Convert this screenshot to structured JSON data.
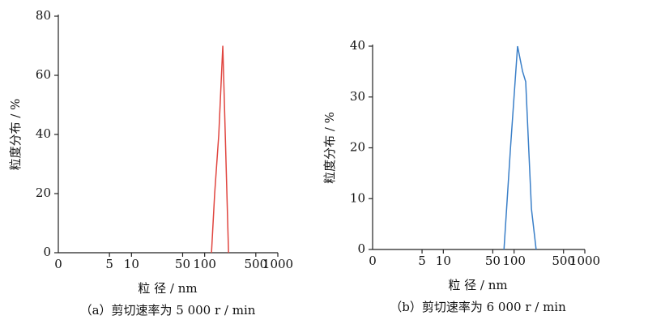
{
  "chart_data": [
    {
      "type": "line",
      "caption": "（a）剪切速率为 5 000 r / min",
      "xlabel": "粒 径 / nm",
      "ylabel": "粒度分布 / %",
      "xscale": "log",
      "xlim": [
        1,
        1000
      ],
      "x_origin_label": "0",
      "xticks": [
        5,
        10,
        50,
        100,
        500,
        1000
      ],
      "ylim": [
        0,
        80
      ],
      "yticks": [
        0,
        20,
        40,
        60,
        80
      ],
      "series": [
        {
          "color": "#e0453f",
          "x": [
            124,
            137,
            156,
            177,
            212
          ],
          "values": [
            0,
            20,
            40,
            70,
            0
          ]
        }
      ]
    },
    {
      "type": "line",
      "caption": "（b）剪切速率为 6 000 r / min",
      "xlabel": "粒 径 / nm",
      "ylabel": "粒度分布 / %",
      "xscale": "log",
      "xlim": [
        1,
        1000
      ],
      "x_origin_label": "0",
      "xticks": [
        5,
        10,
        50,
        100,
        500,
        1000
      ],
      "ylim": [
        0,
        40
      ],
      "yticks": [
        0,
        10,
        20,
        30,
        40
      ],
      "series": [
        {
          "color": "#3a7fc8",
          "x": [
            72,
            89,
            112,
            132,
            146,
            176,
            205
          ],
          "values": [
            0,
            20,
            40,
            35,
            33,
            8,
            0
          ]
        }
      ]
    }
  ]
}
